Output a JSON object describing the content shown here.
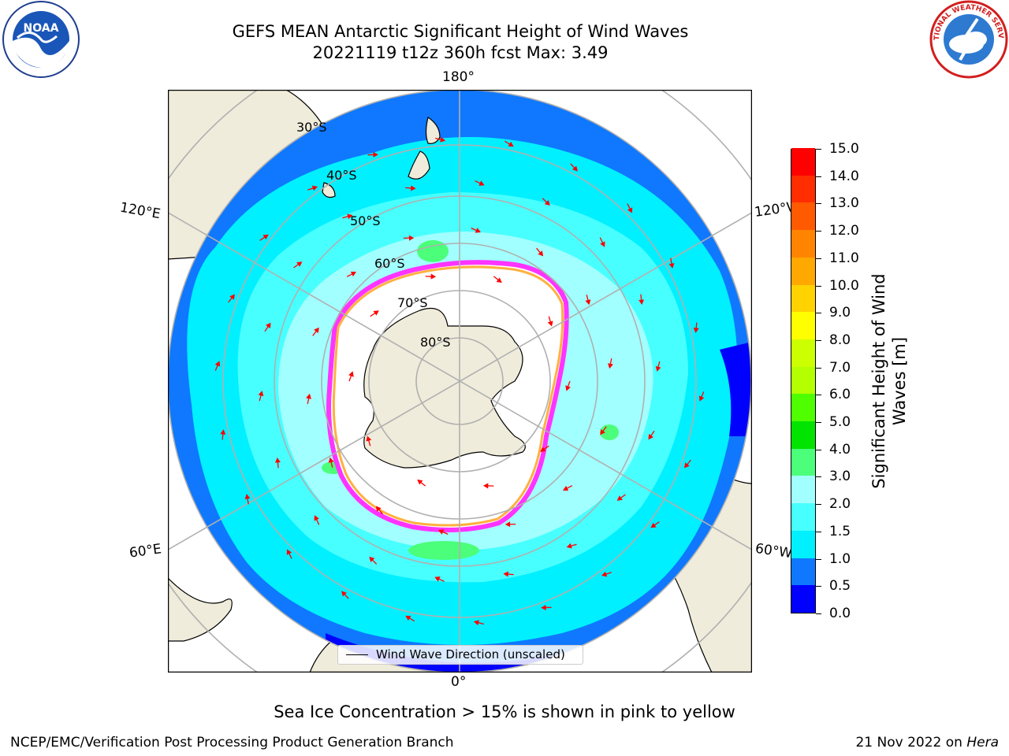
{
  "title": {
    "line1": "GEFS MEAN Antarctic Significant Height of Wind Waves",
    "line2": "20221119 t12z 360h fcst   Max: 3.49"
  },
  "logos": {
    "left": "noaa-logo",
    "left_text": "NOAA",
    "right": "national-weather-service-logo",
    "right_text": "NATIONAL WEATHER SERVICE"
  },
  "map": {
    "projection": "south-polar-stereographic",
    "longitude_labels": {
      "top": "180°",
      "bottom": "0°",
      "upper_left": "120°E",
      "upper_right": "120°W",
      "lower_left": "60°E",
      "lower_right": "60°W"
    },
    "latitude_labels": [
      "30°S",
      "40°S",
      "50°S",
      "60°S",
      "70°S",
      "80°S"
    ],
    "colors": {
      "land": "#efecdb",
      "sea_ice_open": "#ffffff",
      "sea_ice_edge": "#ff33ff",
      "sea_ice_inner": "#ffb040",
      "gridline": "#b0b0b0",
      "arrow": "#ff0000"
    }
  },
  "colorbar": {
    "label": "Significant Height of Wind Waves [m]",
    "label_line1": "Significant Height of Wind",
    "label_line2": "Waves [m]",
    "tick_labels": [
      "0.0",
      "0.5",
      "1.0",
      "1.5",
      "2.0",
      "3.0",
      "4.0",
      "5.0",
      "6.0",
      "7.0",
      "8.0",
      "9.0",
      "10.0",
      "11.0",
      "12.0",
      "13.0",
      "14.0",
      "15.0"
    ],
    "colors": [
      "#0000ff",
      "#0f78ff",
      "#00f0ff",
      "#48ffff",
      "#a2ffff",
      "#4bff7a",
      "#00e400",
      "#4fff00",
      "#b4ff00",
      "#ccff00",
      "#ffff00",
      "#ffd200",
      "#ffa800",
      "#ff8500",
      "#ff5a00",
      "#ff2d00",
      "#ff0000"
    ]
  },
  "legend": {
    "label": "Wind Wave Direction (unscaled)"
  },
  "sea_ice_note": "Sea Ice Concentration > 15% is shown in pink to yellow",
  "footer": {
    "left": "NCEP/EMC/Verification Post Processing Product Generation Branch",
    "right_date": "21 Nov 2022 on ",
    "right_host": "Hera"
  }
}
